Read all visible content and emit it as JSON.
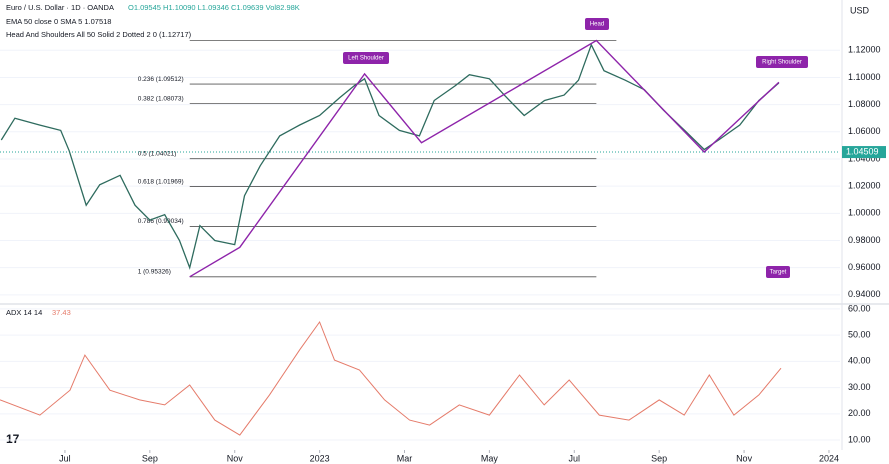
{
  "chart_data": [
    {
      "type": "line",
      "title": "Euro / U.S. Dollar · 1D · OANDA",
      "subtitle": "O1.09545 H1.10090 L1.09346 C1.09639 Vol82.98K",
      "indicators": [
        "EMA 50 close 0 SMA 5 1.07518",
        "Head And Shoulders All 50 Solid 2 Dotted 2 0 (1.12717)"
      ],
      "currency": "USD",
      "xlim": [
        4.47,
        24.26
      ],
      "ylim": [
        0.934,
        1.157
      ],
      "yticks": [
        {
          "value": 1.12,
          "label": "1.12000"
        },
        {
          "value": 1.1,
          "label": "1.10000"
        },
        {
          "value": 1.08,
          "label": "1.08000"
        },
        {
          "value": 1.06,
          "label": "1.06000"
        },
        {
          "value": 1.04,
          "label": "1.04000"
        },
        {
          "value": 1.02,
          "label": "1.02000"
        },
        {
          "value": 1.0,
          "label": "1.00000"
        },
        {
          "value": 0.98,
          "label": "0.98000"
        },
        {
          "value": 0.96,
          "label": "0.96000"
        },
        {
          "value": 0.94,
          "label": "0.94000"
        }
      ],
      "series": [
        {
          "name": "EUR/USD",
          "color": "#2e6b5e",
          "x": [
            4.5,
            4.82,
            5.4,
            5.9,
            6.1,
            6.5,
            6.82,
            7.3,
            7.65,
            8.0,
            8.35,
            8.7,
            8.94,
            9.18,
            9.53,
            10.0,
            10.23,
            10.6,
            11.06,
            11.53,
            12.0,
            12.47,
            12.82,
            13.06,
            13.4,
            13.88,
            14.35,
            14.7,
            15.2,
            15.53,
            16.0,
            16.35,
            16.82,
            17.3,
            17.76,
            18.1,
            18.4,
            18.7,
            19.2,
            19.65,
            20.1,
            20.6,
            21.06,
            21.4,
            21.9,
            22.35,
            22.82
          ],
          "values": [
            1.054,
            1.07,
            1.065,
            1.061,
            1.046,
            1.006,
            1.021,
            1.028,
            1.006,
            0.995,
            0.999,
            0.98,
            0.96,
            0.991,
            0.98,
            0.977,
            1.013,
            1.035,
            1.057,
            1.065,
            1.072,
            1.085,
            1.094,
            1.099,
            1.072,
            1.061,
            1.057,
            1.083,
            1.094,
            1.102,
            1.099,
            1.087,
            1.072,
            1.083,
            1.087,
            1.098,
            1.124,
            1.105,
            1.098,
            1.091,
            1.076,
            1.061,
            1.047,
            1.054,
            1.065,
            1.083,
            1.096
          ]
        }
      ],
      "pattern": {
        "color": "#8e24aa",
        "x": [
          8.94,
          10.12,
          13.06,
          14.4,
          18.52,
          21.06,
          22.82
        ],
        "values": [
          0.9533,
          0.975,
          1.1026,
          1.052,
          1.1272,
          1.0451,
          1.0965
        ]
      },
      "levels": [
        {
          "value": 1.12717,
          "label": "(1.12717)"
        },
        {
          "value": 1.09512,
          "label": "0.236 (1.09512)"
        },
        {
          "value": 1.08073,
          "label": "0.382 (1.08073)"
        },
        {
          "value": 1.04021,
          "label": "0.5 (1.04021)"
        },
        {
          "value": 1.01969,
          "label": "0.618 (1.01969)"
        },
        {
          "value": 0.99034,
          "label": "0.786 (0.99034)"
        },
        {
          "value": 0.95326,
          "label": "1 (0.95326)"
        }
      ],
      "price_line": 1.04509,
      "annotations": [
        "Left Shoulder",
        "Head",
        "Right Shoulder",
        "Target"
      ]
    },
    {
      "type": "line",
      "title": "ADX 14 14",
      "last": 37.43,
      "xlim": [
        4.47,
        24.26
      ],
      "ylim": [
        6.2,
        61.5
      ],
      "yticks": [
        {
          "value": 60,
          "label": "60.00"
        },
        {
          "value": 50,
          "label": "50.00"
        },
        {
          "value": 40,
          "label": "40.00"
        },
        {
          "value": 30,
          "label": "30.00"
        },
        {
          "value": 20,
          "label": "20.00"
        },
        {
          "value": 10,
          "label": "10.00"
        }
      ],
      "xticks": [
        {
          "value": 6,
          "label": "Jul"
        },
        {
          "value": 8,
          "label": "Sep"
        },
        {
          "value": 10,
          "label": "Nov"
        },
        {
          "value": 12,
          "label": "2023"
        },
        {
          "value": 14,
          "label": "Mar"
        },
        {
          "value": 16,
          "label": "May"
        },
        {
          "value": 18,
          "label": "Jul"
        },
        {
          "value": 20,
          "label": "Sep"
        },
        {
          "value": 22,
          "label": "Nov"
        },
        {
          "value": 24,
          "label": "2024"
        }
      ],
      "series": [
        {
          "name": "ADX",
          "color": "#e57b6a",
          "x": [
            4.47,
            5.41,
            6.12,
            6.47,
            7.06,
            7.76,
            8.35,
            8.94,
            9.53,
            10.12,
            10.82,
            11.53,
            12.0,
            12.35,
            12.94,
            13.53,
            14.12,
            14.59,
            15.29,
            16.0,
            16.71,
            17.29,
            17.88,
            18.59,
            19.29,
            20.0,
            20.59,
            21.18,
            21.76,
            22.35,
            22.87
          ],
          "values": [
            25.3,
            19.5,
            29,
            42.4,
            29,
            25.3,
            23.4,
            31,
            17.6,
            11.9,
            27.2,
            44.4,
            55,
            40.5,
            36.7,
            25.3,
            17.6,
            15.7,
            23.4,
            19.5,
            34.8,
            23.4,
            32.9,
            19.5,
            17.6,
            25.3,
            19.5,
            34.8,
            19.5,
            27.2,
            37.4
          ]
        }
      ]
    }
  ]
}
